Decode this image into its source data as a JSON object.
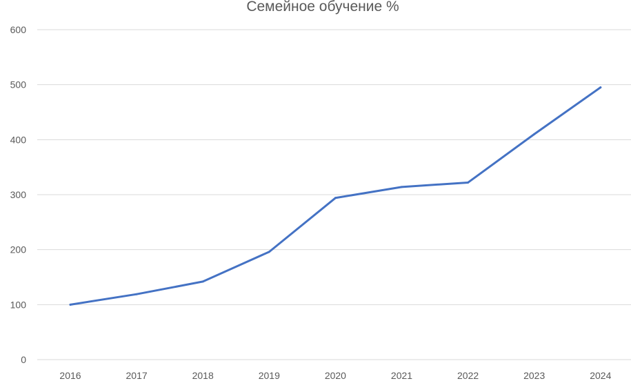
{
  "chart_data": {
    "type": "line",
    "title": "Семейное обучение %",
    "xlabel": "",
    "ylabel": "",
    "categories": [
      "2016",
      "2017",
      "2018",
      "2019",
      "2020",
      "2021",
      "2022",
      "2023",
      "2024"
    ],
    "series": [
      {
        "values": [
          100,
          119,
          142,
          196,
          294,
          314,
          322,
          410,
          495
        ],
        "color": "#4472C4"
      }
    ],
    "ylim": [
      0,
      600
    ],
    "yticks": [
      "0",
      "100",
      "200",
      "300",
      "400",
      "500",
      "600"
    ],
    "grid": "horizontal",
    "legend": "none"
  }
}
